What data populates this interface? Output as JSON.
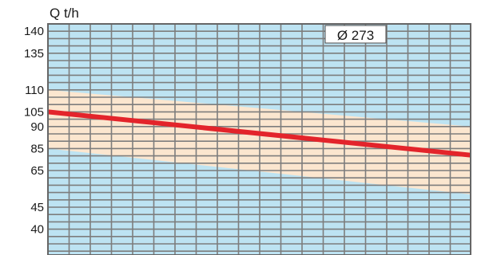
{
  "chart_data": {
    "type": "line",
    "ylabel": "Q t/h",
    "badge": "Ø 273",
    "ytick_labels": [
      "140",
      "135",
      "110",
      "105",
      "90",
      "85",
      "65",
      "45",
      "40"
    ],
    "x": [
      0,
      1
    ],
    "series": [
      {
        "values": [
          105,
          79
        ]
      }
    ],
    "band": {
      "upper": [
        110,
        90
      ],
      "lower": [
        85,
        52
      ]
    },
    "grid": true,
    "colors": {
      "background": "#bde3f2",
      "grid": "#7d7d7d",
      "band": "#fbe6cf",
      "line": "#e3242b",
      "frame": "#666666",
      "text": "#1a1a1a"
    }
  }
}
